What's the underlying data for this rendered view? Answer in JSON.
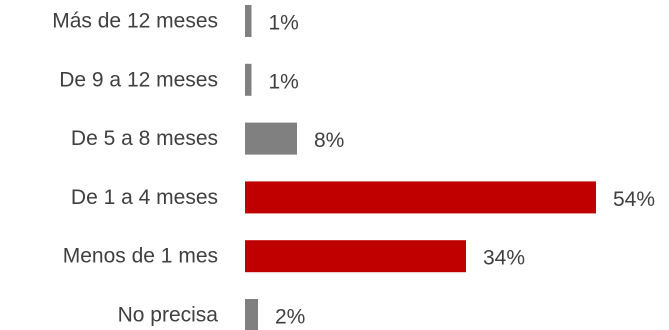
{
  "chart_data": {
    "type": "bar",
    "orientation": "horizontal",
    "categories": [
      "Más de 12 meses",
      "De 9 a 12 meses",
      "De 5 a 8 meses",
      "De 1 a 4 meses",
      "Menos de 1 mes",
      "No precisa"
    ],
    "values": [
      1,
      1,
      8,
      54,
      34,
      2
    ],
    "value_labels": [
      "1%",
      "1%",
      "8%",
      "54%",
      "34%",
      "2%"
    ],
    "bar_colors": [
      "#808080",
      "#808080",
      "#808080",
      "#c00000",
      "#c00000",
      "#808080"
    ],
    "xlim": [
      0,
      54
    ],
    "grid": false,
    "legend": "none"
  }
}
